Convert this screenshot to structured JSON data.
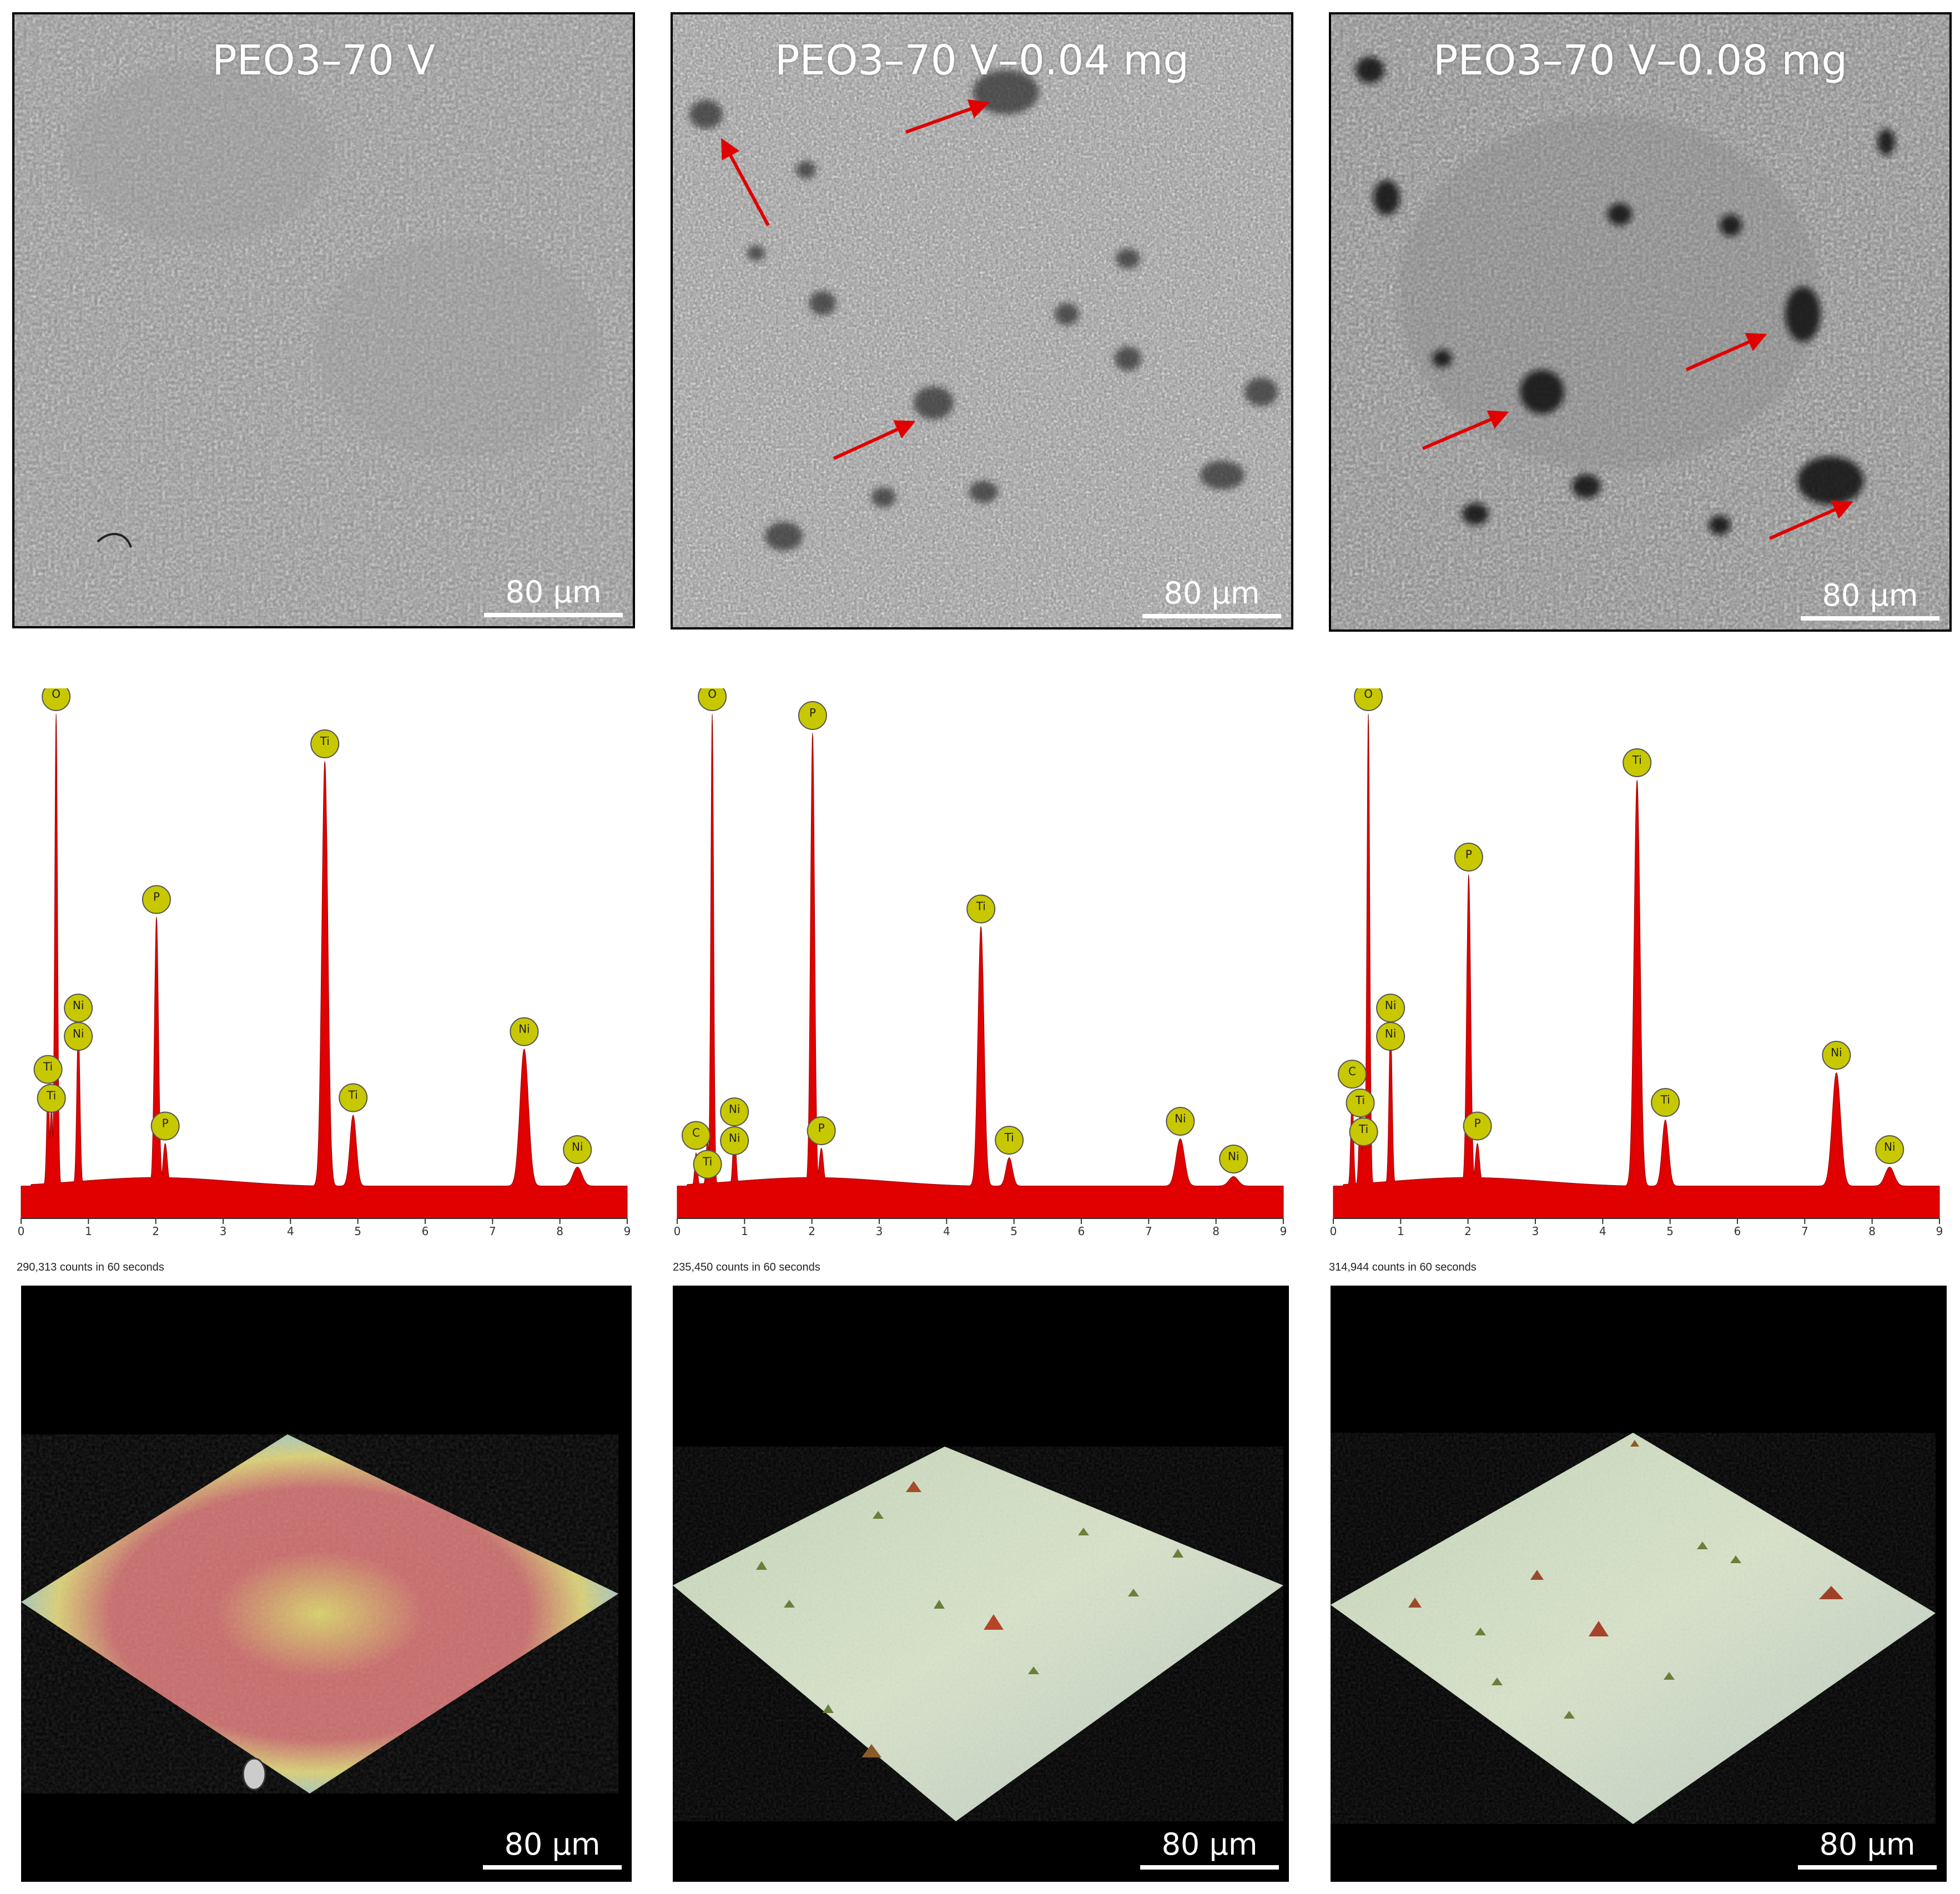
{
  "sem_panels": [
    {
      "title": "PEO3–70 V",
      "scale": "80 μm"
    },
    {
      "title": "PEO3–70 V–0.04 mg",
      "scale": "80 μm"
    },
    {
      "title": "PEO3–70 V–0.08 mg",
      "scale": "80 μm"
    }
  ],
  "topo_panels": [
    {
      "scale": "80 μm"
    },
    {
      "scale": "80 μm"
    },
    {
      "scale": "80 μm"
    }
  ],
  "colors": {
    "spectrum_fill": "#e00000",
    "peak_label_fill": "#c8c800",
    "arrow": "#e00000"
  },
  "chart_data": [
    {
      "type": "area",
      "xlabel": "",
      "ylabel": "",
      "xlim": [
        0,
        9
      ],
      "x_ticks": [
        "0",
        "1",
        "2",
        "3",
        "4",
        "5",
        "6",
        "7",
        "8",
        "9"
      ],
      "counts_text": "290,313 counts in 60 seconds",
      "peaks": [
        {
          "label": "O",
          "x": 0.52,
          "height": 1.0
        },
        {
          "label": "Ti",
          "x": 0.4,
          "height": 0.21
        },
        {
          "label": "Ti",
          "x": 0.45,
          "height": 0.17
        },
        {
          "label": "Ni",
          "x": 0.85,
          "height": 0.34
        },
        {
          "label": "Ni",
          "x": 0.85,
          "height": 0.28
        },
        {
          "label": "P",
          "x": 2.01,
          "height": 0.57
        },
        {
          "label": "P",
          "x": 2.14,
          "height": 0.09
        },
        {
          "label": "Ti",
          "x": 4.51,
          "height": 0.9
        },
        {
          "label": "Ti",
          "x": 4.93,
          "height": 0.15
        },
        {
          "label": "Ni",
          "x": 7.47,
          "height": 0.29
        },
        {
          "label": "Ni",
          "x": 8.26,
          "height": 0.04
        }
      ]
    },
    {
      "type": "area",
      "xlabel": "",
      "ylabel": "",
      "xlim": [
        0,
        9
      ],
      "x_ticks": [
        "0",
        "1",
        "2",
        "3",
        "4",
        "5",
        "6",
        "7",
        "8",
        "9"
      ],
      "counts_text": "235,450 counts in 60 seconds",
      "peaks": [
        {
          "label": "O",
          "x": 0.52,
          "height": 1.0
        },
        {
          "label": "C",
          "x": 0.28,
          "height": 0.07
        },
        {
          "label": "Ti",
          "x": 0.45,
          "height": 0.1
        },
        {
          "label": "Ni",
          "x": 0.85,
          "height": 0.12
        },
        {
          "label": "Ni",
          "x": 0.85,
          "height": 0.1
        },
        {
          "label": "P",
          "x": 2.01,
          "height": 0.96
        },
        {
          "label": "P",
          "x": 2.14,
          "height": 0.08
        },
        {
          "label": "Ti",
          "x": 4.51,
          "height": 0.55
        },
        {
          "label": "Ti",
          "x": 4.93,
          "height": 0.06
        },
        {
          "label": "Ni",
          "x": 7.47,
          "height": 0.1
        },
        {
          "label": "Ni",
          "x": 8.26,
          "height": 0.02
        }
      ]
    },
    {
      "type": "area",
      "xlabel": "",
      "ylabel": "",
      "xlim": [
        0,
        9
      ],
      "x_ticks": [
        "0",
        "1",
        "2",
        "3",
        "4",
        "5",
        "6",
        "7",
        "8",
        "9"
      ],
      "counts_text": "314,944 counts in 60 seconds",
      "peaks": [
        {
          "label": "O",
          "x": 0.52,
          "height": 1.0
        },
        {
          "label": "C",
          "x": 0.28,
          "height": 0.2
        },
        {
          "label": "Ti",
          "x": 0.4,
          "height": 0.16
        },
        {
          "label": "Ti",
          "x": 0.45,
          "height": 0.13
        },
        {
          "label": "Ni",
          "x": 0.85,
          "height": 0.34
        },
        {
          "label": "Ni",
          "x": 0.85,
          "height": 0.28
        },
        {
          "label": "P",
          "x": 2.01,
          "height": 0.66
        },
        {
          "label": "P",
          "x": 2.14,
          "height": 0.09
        },
        {
          "label": "Ti",
          "x": 4.51,
          "height": 0.86
        },
        {
          "label": "Ti",
          "x": 4.93,
          "height": 0.14
        },
        {
          "label": "Ni",
          "x": 7.47,
          "height": 0.24
        },
        {
          "label": "Ni",
          "x": 8.26,
          "height": 0.04
        }
      ]
    }
  ]
}
